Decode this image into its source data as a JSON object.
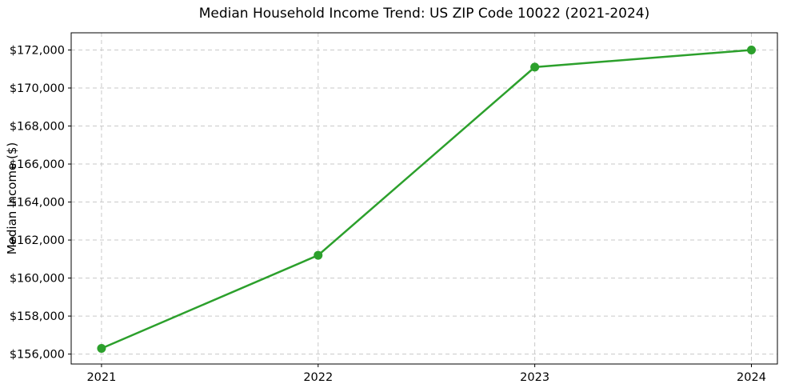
{
  "chart_data": {
    "type": "line",
    "title": "Median Household Income Trend: US ZIP Code 10022 (2021-2024)",
    "xlabel": "",
    "ylabel": "Median Income ($)",
    "x": [
      2021,
      2022,
      2023,
      2024
    ],
    "series": [
      {
        "name": "Median Household Income",
        "values": [
          156300,
          161200,
          171100,
          172000
        ]
      }
    ],
    "xticks": [
      {
        "value": 2021,
        "label": "2021"
      },
      {
        "value": 2022,
        "label": "2022"
      },
      {
        "value": 2023,
        "label": "2023"
      },
      {
        "value": 2024,
        "label": "2024"
      }
    ],
    "yticks": [
      {
        "value": 156000,
        "label": "$156,000"
      },
      {
        "value": 158000,
        "label": "$158,000"
      },
      {
        "value": 160000,
        "label": "$160,000"
      },
      {
        "value": 162000,
        "label": "$162,000"
      },
      {
        "value": 164000,
        "label": "$164,000"
      },
      {
        "value": 166000,
        "label": "$166,000"
      },
      {
        "value": 168000,
        "label": "$168,000"
      },
      {
        "value": 170000,
        "label": "$170,000"
      },
      {
        "value": 172000,
        "label": "$172,000"
      }
    ],
    "xlim": [
      2020.86,
      2024.12
    ],
    "ylim": [
      155478,
      172905
    ],
    "grid": true,
    "legend": "none",
    "marker": "circle",
    "colors": {
      "line": "#2ca02c",
      "marker": "#2ca02c",
      "grid": "#c9c9c9",
      "spine": "#000000",
      "text": "#000000"
    }
  }
}
